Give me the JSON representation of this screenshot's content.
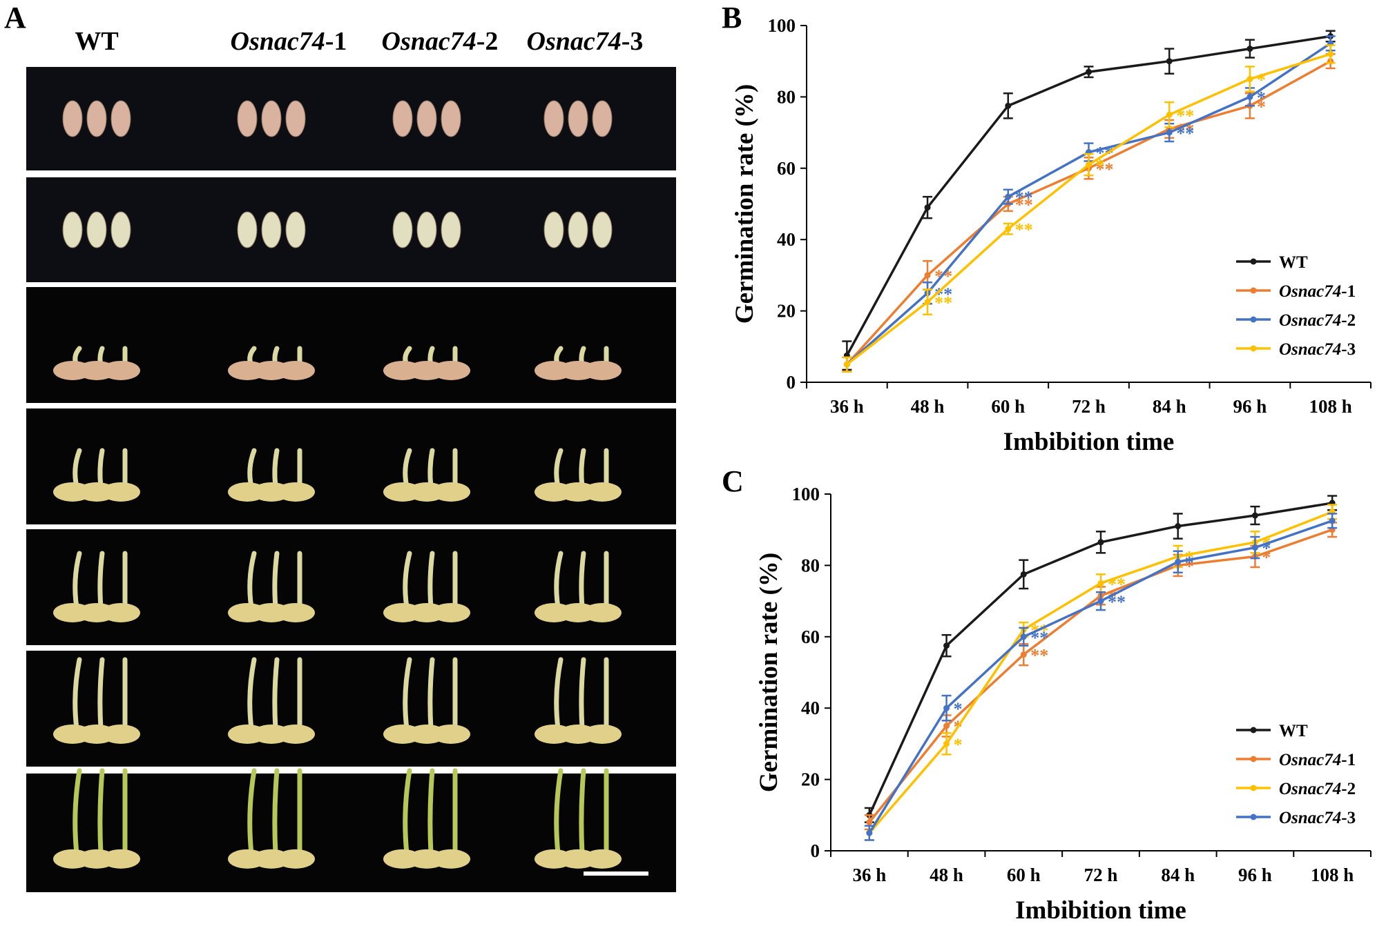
{
  "panel_a": {
    "label": "A",
    "column_headers": [
      {
        "prefix": "WT",
        "italic": "",
        "suffix": ""
      },
      {
        "prefix": "",
        "italic": "Osnac74",
        "suffix": "-1"
      },
      {
        "prefix": "",
        "italic": "Osnac74",
        "suffix": "-2"
      },
      {
        "prefix": "",
        "italic": "Osnac74",
        "suffix": "-3"
      }
    ],
    "photo_rows": 7
  },
  "colors": {
    "WT": "#1a1a1a",
    "orange": "#ed7d31",
    "blue": "#4472c4",
    "yellow": "#ffc000"
  },
  "chart_data": [
    {
      "panel": "B",
      "type": "line",
      "xlabel": "Imbibition time",
      "ylabel": "Germination rate (%)",
      "categories": [
        "36 h",
        "48 h",
        "60 h",
        "72 h",
        "84 h",
        "96 h",
        "108 h"
      ],
      "ylim": [
        0,
        100
      ],
      "yticks": [
        0,
        20,
        40,
        60,
        80,
        100
      ],
      "legend_position": "bottom-right",
      "series": [
        {
          "name": "WT",
          "name_prefix": "WT",
          "name_italic": "",
          "name_suffix": "",
          "color": "#1a1a1a",
          "values": [
            7.5,
            49,
            77.5,
            87,
            90,
            93.5,
            97
          ],
          "errors": [
            4,
            3,
            3.5,
            1.5,
            3.5,
            2.5,
            1.5
          ],
          "sig": [
            "",
            "",
            "",
            "",
            "",
            "",
            ""
          ]
        },
        {
          "name": "Osnac74-1",
          "name_prefix": "",
          "name_italic": "Osnac74",
          "name_suffix": "-1",
          "color": "#ed7d31",
          "values": [
            5,
            30,
            50,
            60,
            71,
            77.5,
            90
          ],
          "errors": [
            2,
            4,
            2,
            3,
            2.5,
            3.5,
            2
          ],
          "sig": [
            "",
            "**",
            "**",
            "**",
            "**",
            "*",
            ""
          ]
        },
        {
          "name": "Osnac74-2",
          "name_prefix": "",
          "name_italic": "Osnac74",
          "name_suffix": "-2",
          "color": "#4472c4",
          "values": [
            5,
            25,
            52,
            64.5,
            70,
            80,
            95
          ],
          "errors": [
            2,
            3,
            2,
            2.5,
            2.5,
            2.5,
            2
          ],
          "sig": [
            "",
            "**",
            "**",
            "**",
            "**",
            "*",
            ""
          ]
        },
        {
          "name": "Osnac74-3",
          "name_prefix": "",
          "name_italic": "Osnac74",
          "name_suffix": "-3",
          "color": "#ffc000",
          "values": [
            5,
            22.5,
            43,
            61,
            75,
            85,
            92
          ],
          "errors": [
            2,
            3.5,
            1.5,
            3,
            3.5,
            3.5,
            2.5
          ],
          "sig": [
            "",
            "**",
            "**",
            "*",
            "**",
            "*",
            ""
          ]
        }
      ]
    },
    {
      "panel": "C",
      "type": "line",
      "xlabel": "Imbibition time",
      "ylabel": "Germination rate (%)",
      "categories": [
        "36 h",
        "48 h",
        "60 h",
        "72 h",
        "84 h",
        "96 h",
        "108 h"
      ],
      "ylim": [
        0,
        100
      ],
      "yticks": [
        0,
        20,
        40,
        60,
        80,
        100
      ],
      "legend_position": "bottom-right",
      "series": [
        {
          "name": "WT",
          "name_prefix": "WT",
          "name_italic": "",
          "name_suffix": "",
          "color": "#1a1a1a",
          "values": [
            10,
            57.5,
            77.5,
            86.5,
            91,
            94,
            97.5
          ],
          "errors": [
            2,
            3,
            4,
            3,
            3.5,
            2.5,
            2
          ],
          "sig": [
            "",
            "",
            "",
            "",
            "",
            "",
            ""
          ]
        },
        {
          "name": "Osnac74-1",
          "name_prefix": "",
          "name_italic": "Osnac74",
          "name_suffix": "-1",
          "color": "#ed7d31",
          "values": [
            8,
            35,
            55,
            71.5,
            80,
            82.5,
            90
          ],
          "errors": [
            2,
            3,
            3,
            2.5,
            3,
            3,
            2
          ],
          "sig": [
            "",
            "*",
            "**",
            "*",
            "*",
            "*",
            ""
          ]
        },
        {
          "name": "Osnac74-2",
          "name_prefix": "",
          "name_italic": "Osnac74",
          "name_suffix": "-2",
          "color": "#ffc000",
          "values": [
            5,
            30,
            62,
            75,
            82.5,
            86.5,
            95
          ],
          "errors": [
            2,
            3,
            2,
            2.5,
            3,
            3,
            2
          ],
          "sig": [
            "",
            "*",
            "**",
            "**",
            "*",
            "*",
            ""
          ]
        },
        {
          "name": "Osnac74-3",
          "name_prefix": "",
          "name_italic": "Osnac74",
          "name_suffix": "-3",
          "color": "#4472c4",
          "values": [
            5,
            40,
            60,
            70,
            81,
            85,
            92.5
          ],
          "errors": [
            2,
            3.5,
            2.5,
            2.5,
            3,
            3,
            2
          ],
          "sig": [
            "",
            "*",
            "**",
            "**",
            "*",
            "*",
            ""
          ]
        }
      ]
    }
  ]
}
